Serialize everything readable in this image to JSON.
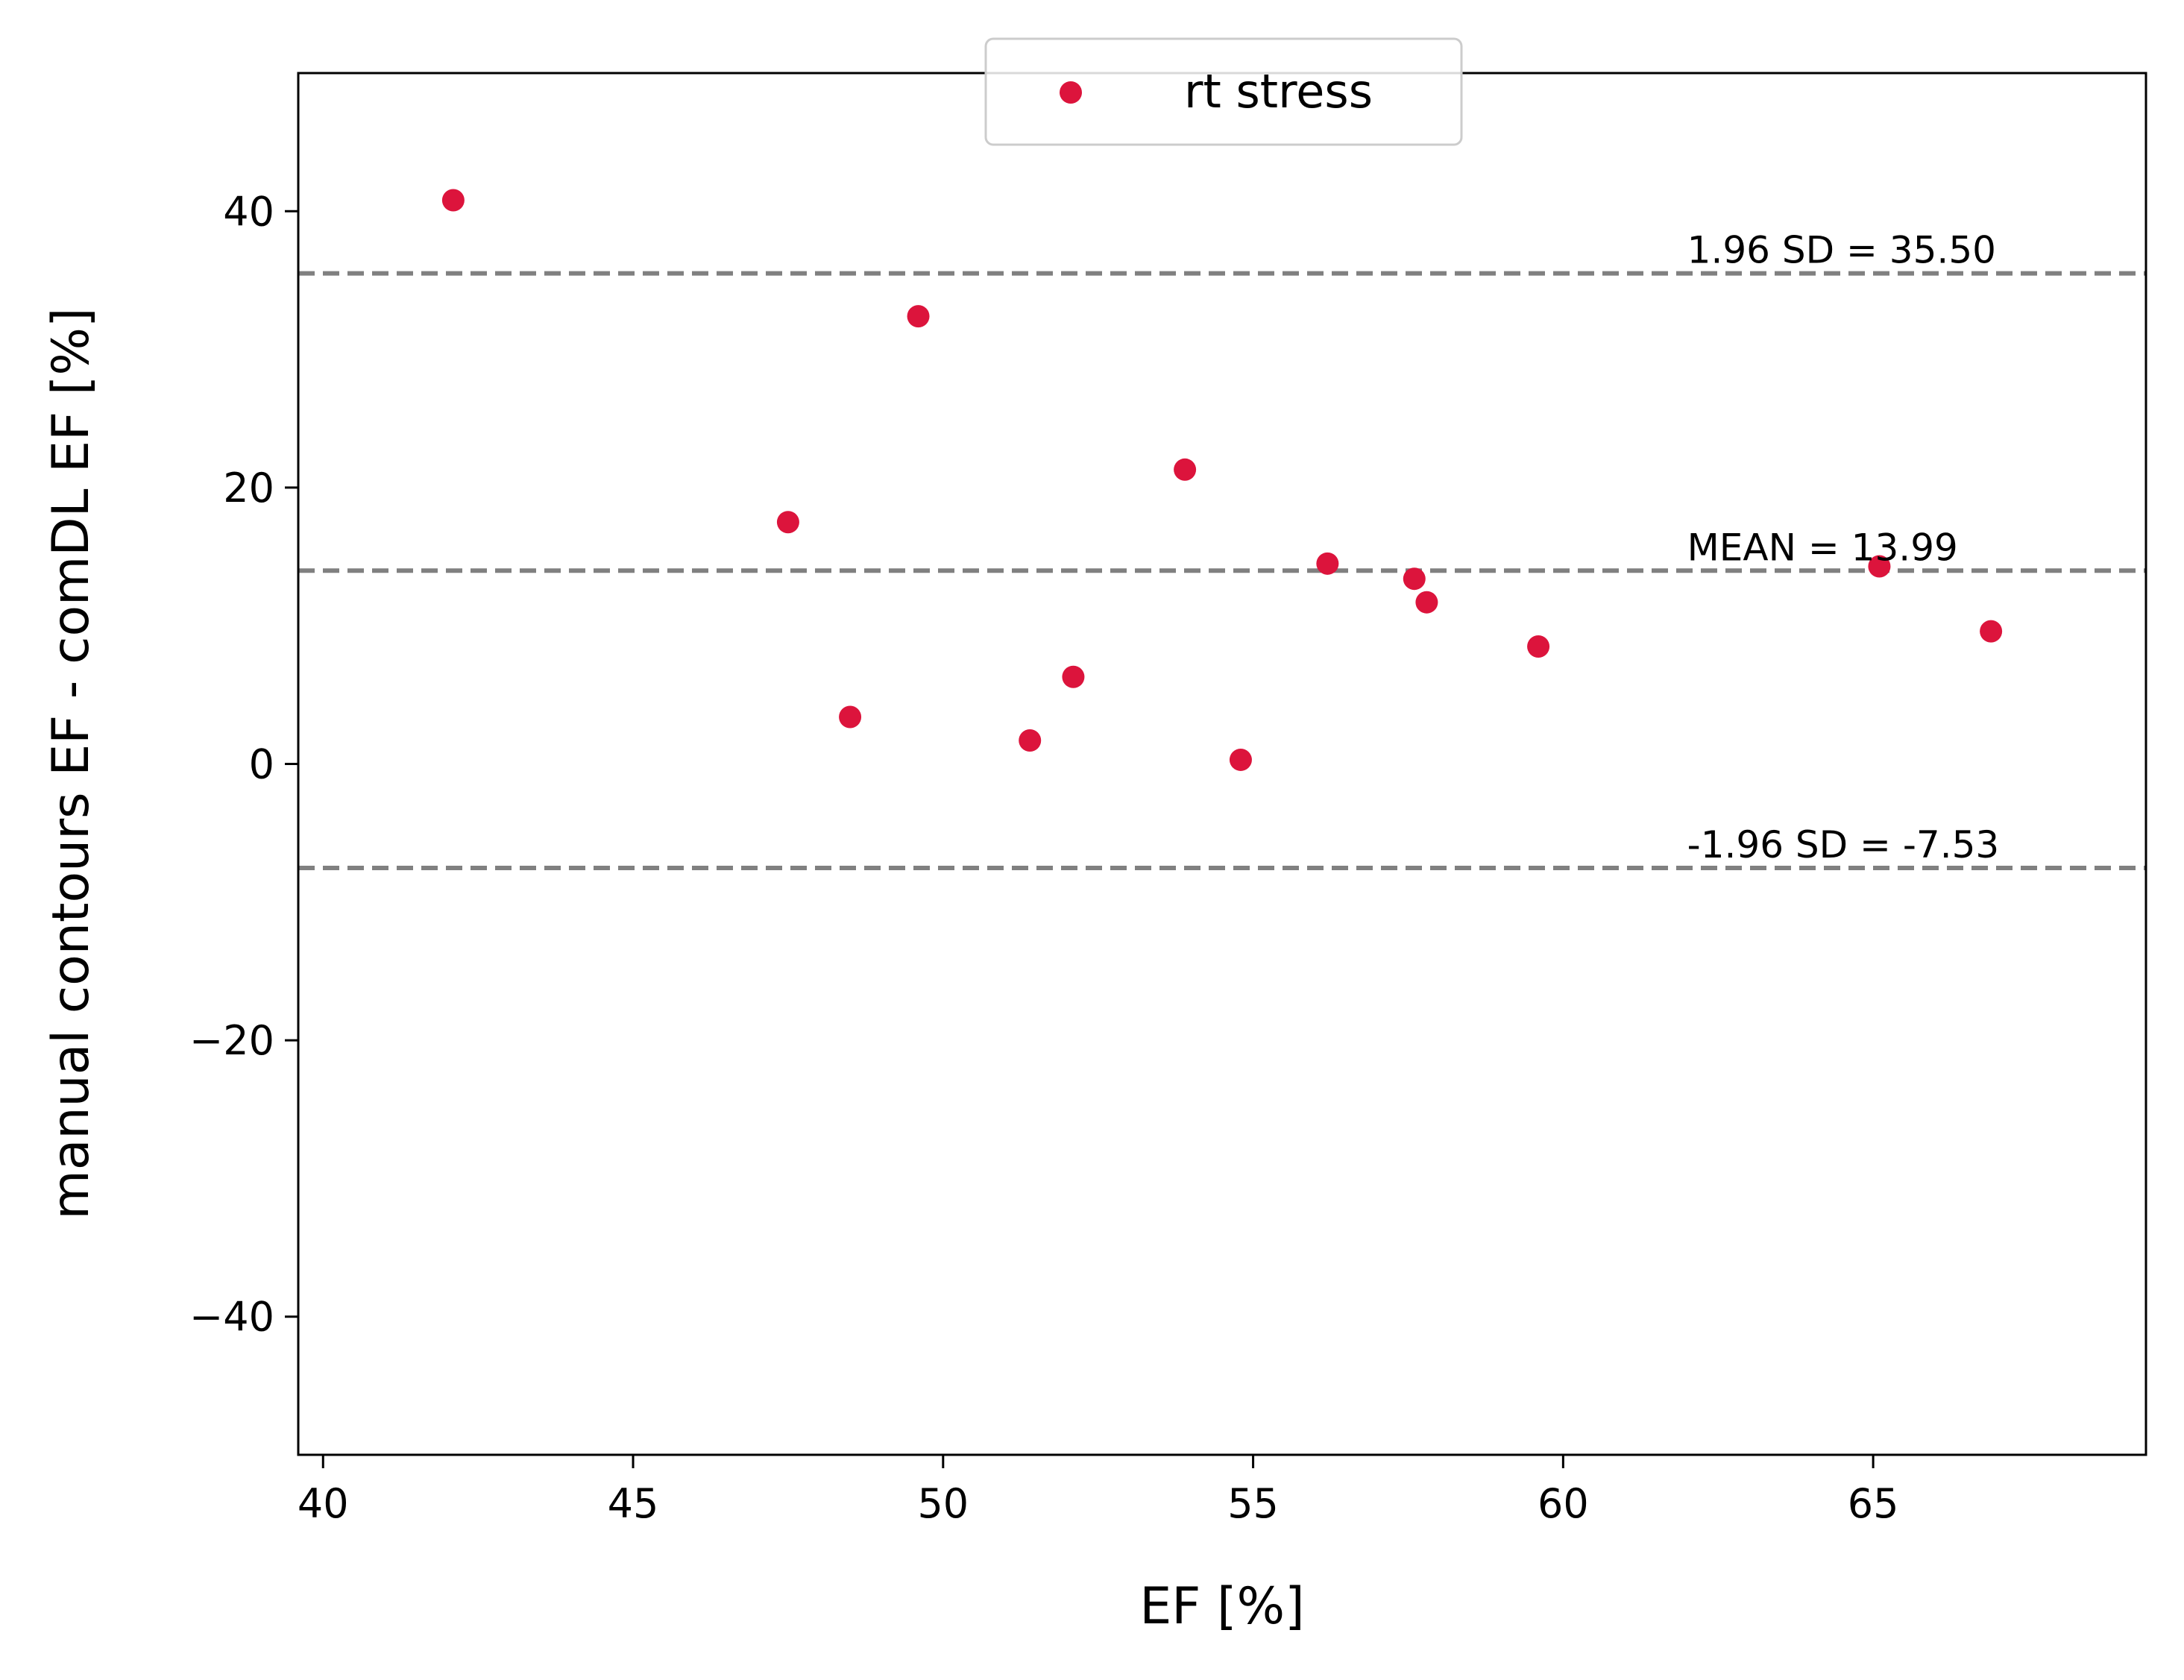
{
  "chart_data": {
    "type": "scatter",
    "xlabel": "EF [%]",
    "ylabel": "manual contours EF - comDL EF [%]",
    "xlim": [
      39.6,
      69.4
    ],
    "ylim": [
      -50,
      50
    ],
    "xticks": [
      40,
      45,
      50,
      55,
      60,
      65
    ],
    "yticks": [
      -40,
      -20,
      0,
      20,
      40
    ],
    "ytick_labels": [
      "−40",
      "−20",
      "0",
      "20",
      "40"
    ],
    "grid": false,
    "legend": {
      "placement": "top-center",
      "entries": [
        "rt stress"
      ]
    },
    "series": [
      {
        "name": "rt stress",
        "color": "#dc143c",
        "points": [
          [
            42.1,
            40.8
          ],
          [
            47.5,
            17.5
          ],
          [
            48.5,
            3.4
          ],
          [
            49.6,
            32.4
          ],
          [
            51.4,
            1.7
          ],
          [
            52.1,
            6.3
          ],
          [
            53.9,
            21.3
          ],
          [
            54.8,
            0.3
          ],
          [
            56.2,
            14.5
          ],
          [
            57.6,
            13.4
          ],
          [
            57.8,
            11.7
          ],
          [
            59.6,
            8.5
          ],
          [
            65.1,
            14.3
          ],
          [
            66.9,
            9.6
          ]
        ]
      }
    ],
    "reference_lines": [
      {
        "y": 35.5,
        "label": "1.96 SD = 35.50",
        "style": "dashed",
        "color": "#808080"
      },
      {
        "y": 13.99,
        "label": "MEAN = 13.99",
        "style": "dashed",
        "color": "#808080"
      },
      {
        "y": -7.53,
        "label": "-1.96 SD = -7.53",
        "style": "dashed",
        "color": "#808080"
      }
    ]
  }
}
